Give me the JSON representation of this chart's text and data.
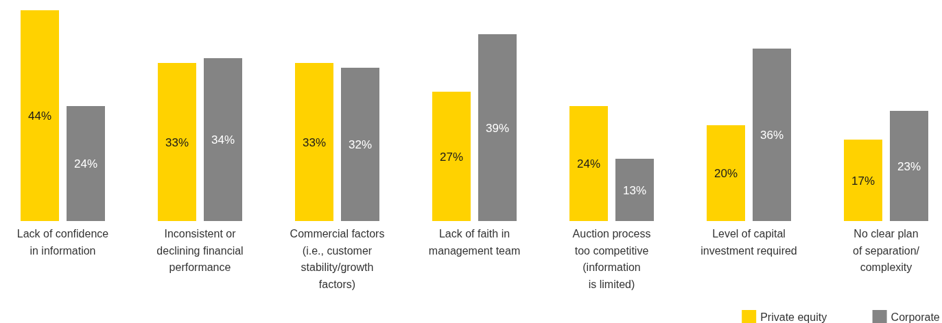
{
  "chart_data": {
    "type": "bar",
    "categories": [
      "Lack of confidence\nin information",
      "Inconsistent or\ndeclining financial\nperformance",
      "Commercial factors\n(i.e., customer\nstability/growth\nfactors)",
      "Lack of faith in\nmanagement team",
      "Auction process\ntoo competitive\n(information\nis limited)",
      "Level of capital\ninvestment required",
      "No clear plan\nof separation/\ncomplexity"
    ],
    "series": [
      {
        "name": "Private equity",
        "color": "#ffd200",
        "values": [
          44,
          33,
          33,
          27,
          24,
          20,
          17
        ],
        "value_labels": [
          "44%",
          "33%",
          "33%",
          "27%",
          "24%",
          "20%",
          "17%"
        ]
      },
      {
        "name": "Corporate",
        "color": "#848484",
        "values": [
          24,
          34,
          32,
          39,
          13,
          36,
          23
        ],
        "value_labels": [
          "24%",
          "34%",
          "32%",
          "39%",
          "13%",
          "36%",
          "23%"
        ]
      }
    ],
    "legend": "bottom right"
  }
}
